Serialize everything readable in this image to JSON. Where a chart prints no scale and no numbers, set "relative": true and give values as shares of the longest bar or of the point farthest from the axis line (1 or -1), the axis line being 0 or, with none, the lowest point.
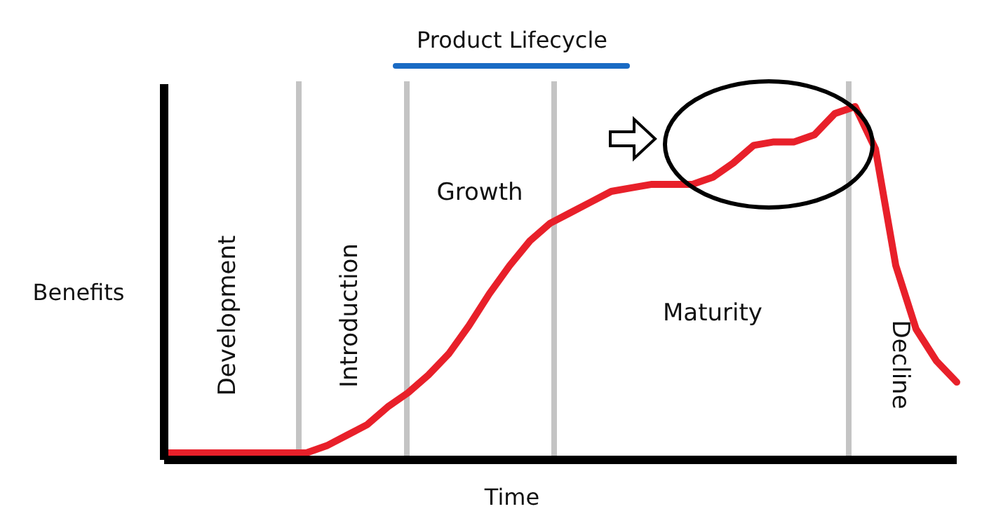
{
  "chart_data": {
    "type": "line",
    "title": "Product Lifecycle",
    "xlabel": "Time",
    "ylabel": "Benefits",
    "relative": true,
    "grid": false,
    "legend": false,
    "marker": "none",
    "line_style": "solid",
    "categories": [
      null,
      null,
      null,
      null,
      null,
      null,
      null,
      null,
      null,
      null,
      null,
      null,
      null,
      null,
      null,
      null,
      null,
      null,
      null,
      null,
      null,
      null,
      null,
      null,
      null,
      null,
      null,
      null,
      null,
      null,
      null,
      null,
      null,
      null,
      null,
      null,
      null,
      null,
      null,
      null
    ],
    "series": [
      {
        "color": "#e8202a",
        "values": [
          0.02,
          0.02,
          0.02,
          0.02,
          0.02,
          0.02,
          0.02,
          0.02,
          0.04,
          0.07,
          0.1,
          0.15,
          0.19,
          0.24,
          0.3,
          0.38,
          0.47,
          0.55,
          0.62,
          0.67,
          0.7,
          0.73,
          0.76,
          0.77,
          0.78,
          0.78,
          0.78,
          0.8,
          0.84,
          0.89,
          0.9,
          0.9,
          0.92,
          0.98,
          1,
          0.88,
          0.55,
          0.37,
          0.28,
          0.22
        ]
      }
    ],
    "annotations": [
      "Development",
      "Introduction",
      "Growth",
      "Maturity",
      "Decline"
    ]
  }
}
